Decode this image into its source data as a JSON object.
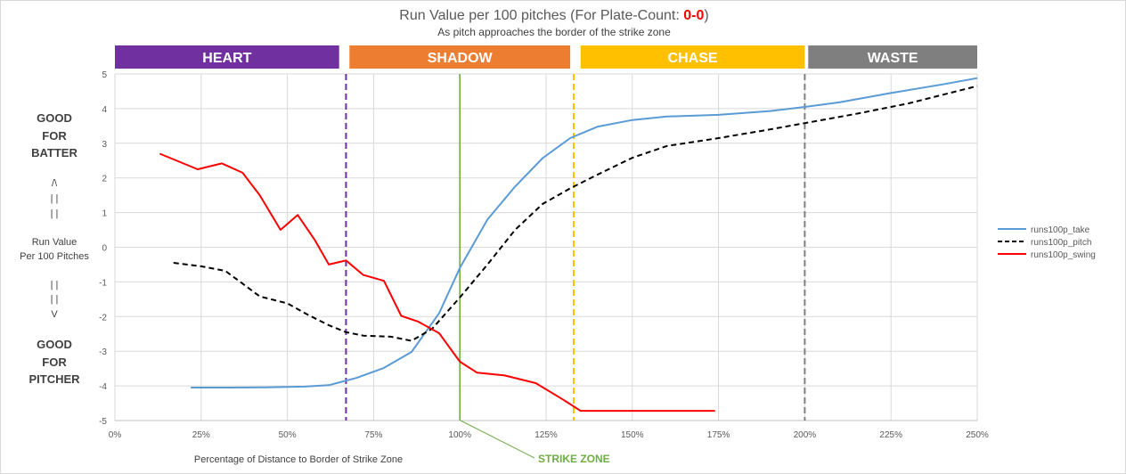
{
  "title": {
    "prefix": "Run Value per 100 pitches (For Plate-Count: ",
    "count": "0-0",
    "suffix": ")",
    "count_color": "#ff0000"
  },
  "subtitle": "As pitch approaches the border of the strike zone",
  "left_labels": {
    "good_for_batter": [
      "GOOD",
      "FOR",
      "BATTER"
    ],
    "up_arrow": [
      "/\\",
      "| |",
      "| |"
    ],
    "axis_title": [
      "Run Value",
      "Per 100 Pitches"
    ],
    "down_arrow": [
      "| |",
      "| |",
      "V"
    ],
    "good_for_pitcher": [
      "GOOD",
      "FOR",
      "PITCHER"
    ]
  },
  "zones": [
    {
      "label": "HEART",
      "from": 0,
      "to": 65,
      "color": "#7030a0"
    },
    {
      "label": "SHADOW",
      "from": 68,
      "to": 132,
      "color": "#ed7d31"
    },
    {
      "label": "CHASE",
      "from": 135,
      "to": 200,
      "color": "#ffc000"
    },
    {
      "label": "WASTE",
      "from": 201,
      "to": 250,
      "color": "#7f7f7f"
    }
  ],
  "vlines": [
    {
      "x": 67,
      "color": "#7030a0",
      "dash": true
    },
    {
      "x": 100,
      "color": "#70ad47",
      "dash": false
    },
    {
      "x": 133,
      "color": "#ffc000",
      "dash": true
    },
    {
      "x": 200,
      "color": "#7f7f7f",
      "dash": true
    }
  ],
  "strike_zone_label": "STRIKE ZONE",
  "strike_zone_color": "#70ad47",
  "chart_data": {
    "type": "line",
    "title": "Run Value per 100 pitches (For Plate-Count: 0-0)",
    "subtitle": "As pitch approaches the border of the strike zone",
    "xlabel": "Percentage of Distance to Border of Strike Zone",
    "ylabel": "Run Value Per 100 Pitches",
    "xlim": [
      0,
      250
    ],
    "ylim": [
      -5,
      5
    ],
    "x_ticks": [
      "0%",
      "25%",
      "50%",
      "75%",
      "100%",
      "125%",
      "150%",
      "175%",
      "200%",
      "225%",
      "250%"
    ],
    "y_ticks": [
      "5",
      "4",
      "3",
      "2",
      "1",
      "0",
      "-1",
      "-2",
      "-3",
      "-4",
      "-5"
    ],
    "grid": true,
    "legend_position": "right",
    "series": [
      {
        "name": "runs100p_take",
        "color": "#5b9bd5",
        "dash": false,
        "points": [
          [
            22,
            -4.05
          ],
          [
            33,
            -4.05
          ],
          [
            44,
            -4.04
          ],
          [
            55,
            -4.02
          ],
          [
            62,
            -3.98
          ],
          [
            70,
            -3.77
          ],
          [
            78,
            -3.48
          ],
          [
            86,
            -3.02
          ],
          [
            94,
            -1.9
          ],
          [
            100,
            -0.6
          ],
          [
            108,
            0.8
          ],
          [
            116,
            1.75
          ],
          [
            124,
            2.57
          ],
          [
            132,
            3.15
          ],
          [
            140,
            3.48
          ],
          [
            150,
            3.67
          ],
          [
            160,
            3.77
          ],
          [
            175,
            3.82
          ],
          [
            190,
            3.93
          ],
          [
            200,
            4.05
          ],
          [
            210,
            4.18
          ],
          [
            225,
            4.45
          ],
          [
            240,
            4.7
          ],
          [
            250,
            4.88
          ]
        ]
      },
      {
        "name": "runs100p_pitch",
        "color": "#000000",
        "dash": true,
        "points": [
          [
            17,
            -0.45
          ],
          [
            25,
            -0.55
          ],
          [
            32,
            -0.68
          ],
          [
            37,
            -1.05
          ],
          [
            42,
            -1.42
          ],
          [
            50,
            -1.62
          ],
          [
            56,
            -1.95
          ],
          [
            62,
            -2.25
          ],
          [
            67,
            -2.45
          ],
          [
            72,
            -2.55
          ],
          [
            80,
            -2.58
          ],
          [
            86,
            -2.7
          ],
          [
            92,
            -2.35
          ],
          [
            100,
            -1.45
          ],
          [
            108,
            -0.5
          ],
          [
            116,
            0.5
          ],
          [
            124,
            1.25
          ],
          [
            132,
            1.7
          ],
          [
            140,
            2.1
          ],
          [
            150,
            2.58
          ],
          [
            160,
            2.92
          ],
          [
            175,
            3.15
          ],
          [
            190,
            3.4
          ],
          [
            200,
            3.58
          ],
          [
            215,
            3.85
          ],
          [
            230,
            4.15
          ],
          [
            250,
            4.65
          ]
        ]
      },
      {
        "name": "runs100p_swing",
        "color": "#ff0000",
        "dash": false,
        "points": [
          [
            13,
            2.7
          ],
          [
            24,
            2.25
          ],
          [
            31,
            2.42
          ],
          [
            37,
            2.15
          ],
          [
            42,
            1.5
          ],
          [
            48,
            0.5
          ],
          [
            53,
            0.93
          ],
          [
            58,
            0.2
          ],
          [
            62,
            -0.5
          ],
          [
            67,
            -0.38
          ],
          [
            72,
            -0.8
          ],
          [
            78,
            -0.97
          ],
          [
            83,
            -1.98
          ],
          [
            88,
            -2.15
          ],
          [
            94,
            -2.48
          ],
          [
            100,
            -3.3
          ],
          [
            105,
            -3.62
          ],
          [
            113,
            -3.7
          ],
          [
            122,
            -3.92
          ],
          [
            130,
            -4.4
          ],
          [
            135,
            -4.72
          ],
          [
            150,
            -4.72
          ],
          [
            160,
            -4.72
          ],
          [
            174,
            -4.72
          ]
        ]
      }
    ]
  }
}
